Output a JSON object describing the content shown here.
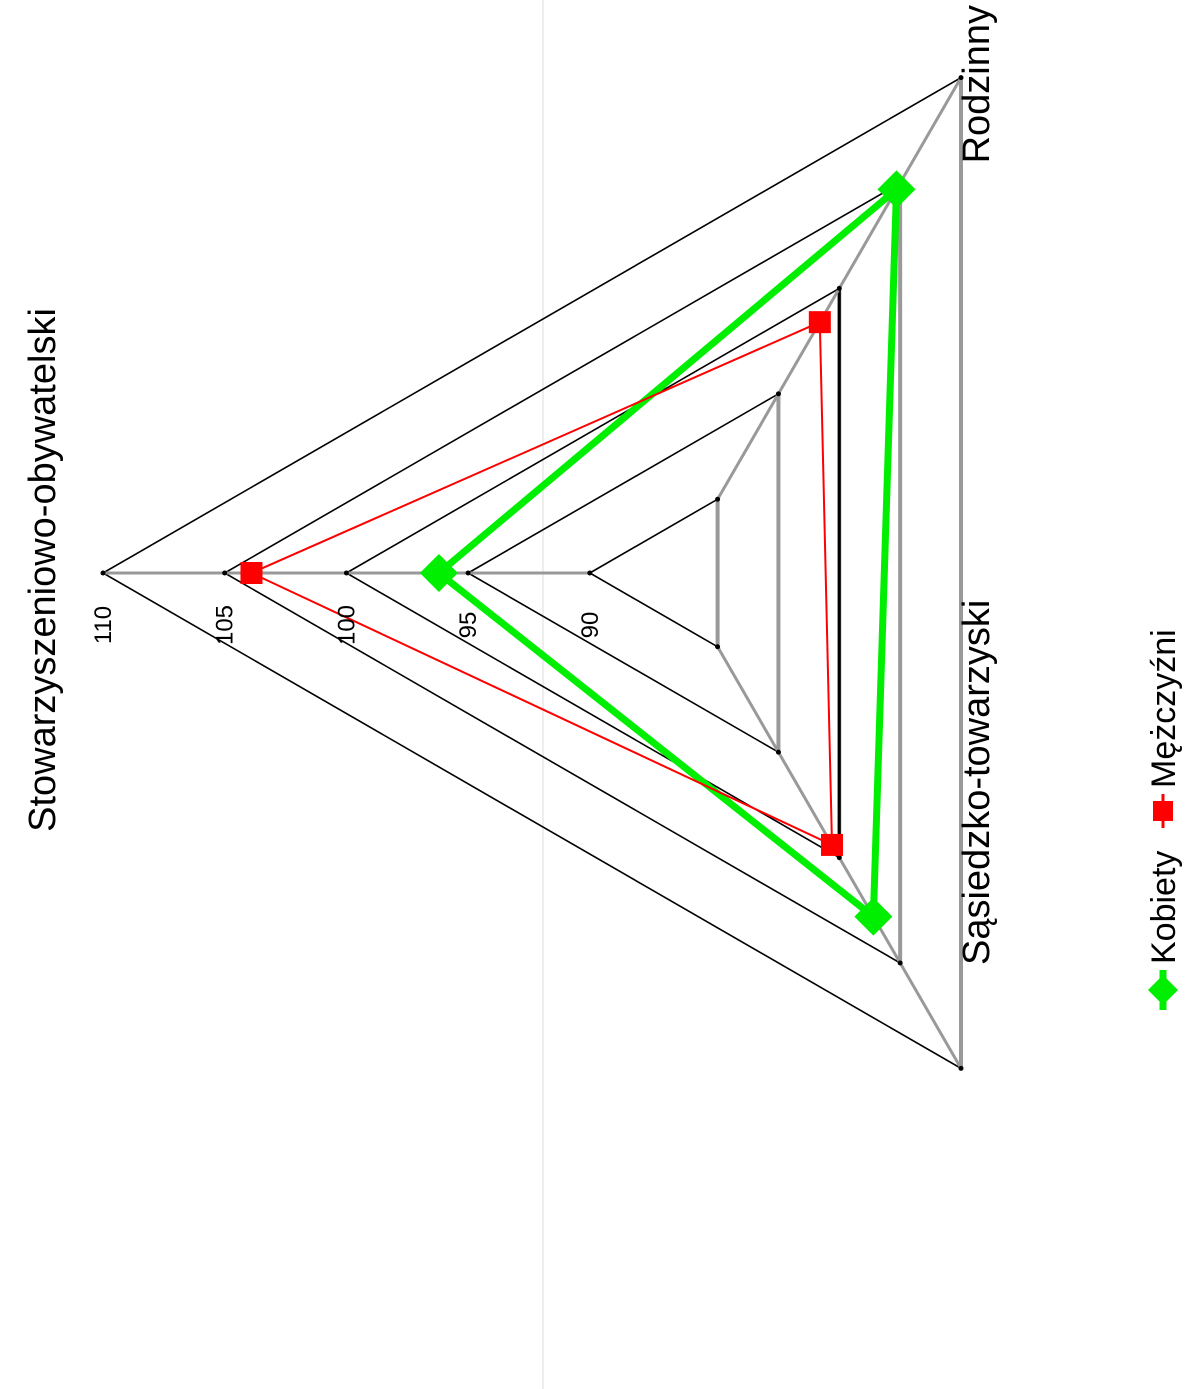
{
  "chart_data": {
    "type": "radar",
    "rotation": "rotated 90 degrees clockwise",
    "axes": [
      "Stowarzyszeniowo-obywatelski",
      "Rodzinny",
      "Sąsiedzko-towarzyski"
    ],
    "ticks": [
      "90",
      "95",
      "100",
      "105",
      "110"
    ],
    "tick_values": [
      90,
      95,
      100,
      105,
      110
    ],
    "range": [
      86.5,
      110
    ],
    "series": [
      {
        "name": "Kobiety",
        "values": [
          96.2,
          104.7,
          102.8
        ],
        "color": "#00ee00",
        "marker": "diamond"
      },
      {
        "name": "Mężczyźni",
        "values": [
          103.9,
          98.4,
          99.4
        ],
        "color": "#ff0000",
        "marker": "square"
      }
    ],
    "legend_position": "bottom"
  }
}
